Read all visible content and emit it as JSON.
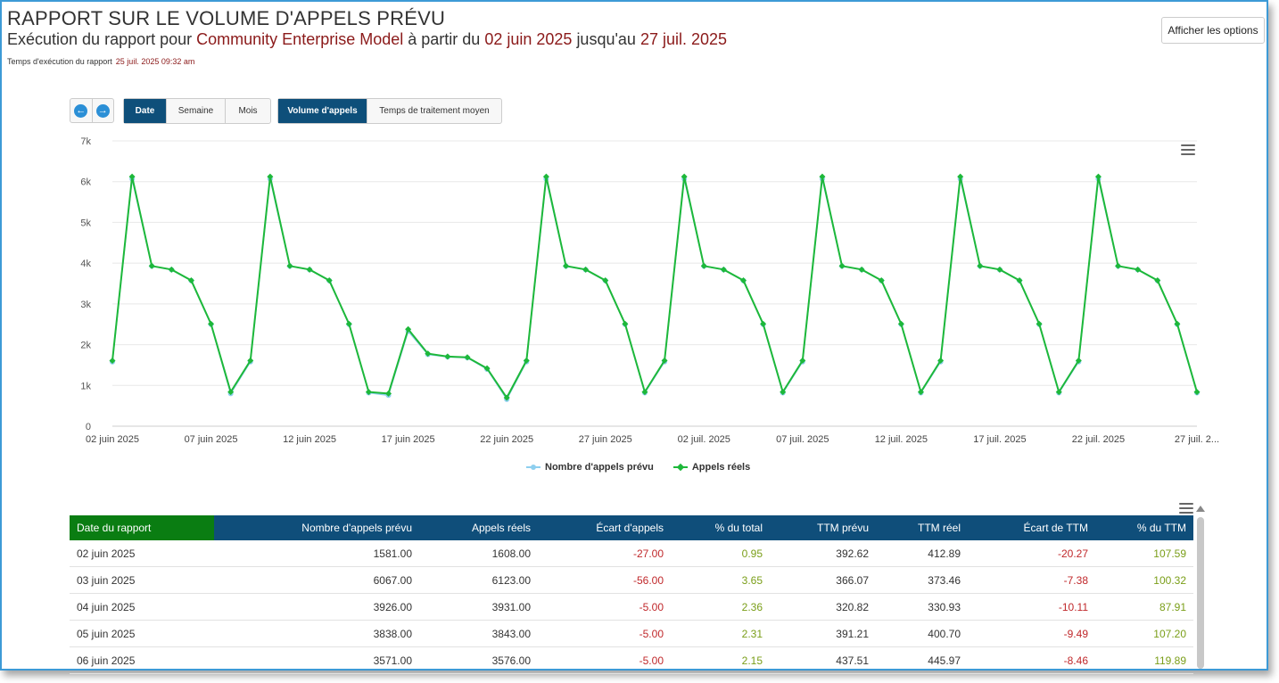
{
  "report": {
    "title": "RAPPORT SUR LE VOLUME D'APPELS PRÉVU",
    "subtitle_prefix": "Exécution du rapport pour",
    "model": "Community Enterprise Model",
    "from_text": "à partir du",
    "start_date": "02 juin 2025",
    "until_text": "jusqu'au",
    "end_date": "27 juil. 2025",
    "runtime_label": "Temps d'exécution du rapport",
    "runtime_value": "25 juil. 2025 09:32 am"
  },
  "toolbar": {
    "options_label": "Afficher les options",
    "prev_icon": "arrow-left-icon",
    "next_icon": "arrow-right-icon",
    "period_tabs": [
      {
        "label": "Date",
        "active": true
      },
      {
        "label": "Semaine",
        "active": false
      },
      {
        "label": "Mois",
        "active": false
      }
    ],
    "metric_tabs": [
      {
        "label": "Volume d'appels",
        "active": true
      },
      {
        "label": "Temps de traitement moyen",
        "active": false
      }
    ]
  },
  "chart_data": {
    "type": "line",
    "title": "",
    "xlabel": "",
    "ylabel": "",
    "ylim": [
      0,
      7000
    ],
    "yticks": [
      "0",
      "1k",
      "2k",
      "3k",
      "4k",
      "5k",
      "6k",
      "7k"
    ],
    "xtick_labels": [
      "02 juin 2025",
      "07 juin 2025",
      "12 juin 2025",
      "17 juin 2025",
      "22 juin 2025",
      "27 juin 2025",
      "02 juil. 2025",
      "07 juil. 2025",
      "12 juil. 2025",
      "17 juil. 2025",
      "22 juil. 2025",
      "27 juil. 2..."
    ],
    "grid": true,
    "legend": "bottom",
    "x": [
      "2025-06-02",
      "2025-06-03",
      "2025-06-04",
      "2025-06-05",
      "2025-06-06",
      "2025-06-07",
      "2025-06-08",
      "2025-06-09",
      "2025-06-10",
      "2025-06-11",
      "2025-06-12",
      "2025-06-13",
      "2025-06-14",
      "2025-06-15",
      "2025-06-16",
      "2025-06-17",
      "2025-06-18",
      "2025-06-19",
      "2025-06-20",
      "2025-06-21",
      "2025-06-22",
      "2025-06-23",
      "2025-06-24",
      "2025-06-25",
      "2025-06-26",
      "2025-06-27",
      "2025-06-28",
      "2025-06-29",
      "2025-06-30",
      "2025-07-01",
      "2025-07-02",
      "2025-07-03",
      "2025-07-04",
      "2025-07-05",
      "2025-07-06",
      "2025-07-07",
      "2025-07-08",
      "2025-07-09",
      "2025-07-10",
      "2025-07-11",
      "2025-07-12",
      "2025-07-13",
      "2025-07-14",
      "2025-07-15",
      "2025-07-16",
      "2025-07-17",
      "2025-07-18",
      "2025-07-19",
      "2025-07-20",
      "2025-07-21",
      "2025-07-22",
      "2025-07-23",
      "2025-07-24",
      "2025-07-25",
      "2025-07-26",
      "2025-07-27"
    ],
    "series": [
      {
        "name": "Nombre d'appels prévu",
        "color": "#8ecfef",
        "values": [
          1581,
          6067,
          3926,
          3838,
          3571,
          2500,
          800,
          1580,
          6067,
          3926,
          3838,
          3571,
          2500,
          820,
          760,
          2330,
          1760,
          1700,
          1680,
          1400,
          660,
          1580,
          6067,
          3926,
          3838,
          3571,
          2500,
          820,
          1580,
          6067,
          3926,
          3838,
          3571,
          2500,
          820,
          1580,
          6067,
          3926,
          3838,
          3571,
          2500,
          820,
          1580,
          6067,
          3926,
          3838,
          3571,
          2500,
          820,
          1580,
          6067,
          3926,
          3838,
          3571,
          2500,
          820
        ]
      },
      {
        "name": "Appels réels",
        "color": "#1db83a",
        "values": [
          1608,
          6123,
          3931,
          3843,
          3576,
          2510,
          840,
          1610,
          6123,
          3931,
          3843,
          3576,
          2510,
          840,
          800,
          2380,
          1780,
          1710,
          1690,
          1420,
          700,
          1610,
          6123,
          3931,
          3843,
          3576,
          2510,
          840,
          1610,
          6123,
          3931,
          3843,
          3576,
          2510,
          840,
          1610,
          6123,
          3931,
          3843,
          3576,
          2510,
          840,
          1610,
          6123,
          3931,
          3843,
          3576,
          2510,
          840,
          1610,
          6123,
          3931,
          3843,
          3576,
          2510,
          840
        ]
      }
    ]
  },
  "table": {
    "headers": [
      "Date du rapport",
      "Nombre d'appels prévu",
      "Appels réels",
      "Écart d'appels",
      "% du total",
      "TTM prévu",
      "TTM réel",
      "Écart de TTM",
      "% du TTM"
    ],
    "rows": [
      [
        "02 juin 2025",
        "1581.00",
        "1608.00",
        "-27.00",
        "0.95",
        "392.62",
        "412.89",
        "-20.27",
        "107.59"
      ],
      [
        "03 juin 2025",
        "6067.00",
        "6123.00",
        "-56.00",
        "3.65",
        "366.07",
        "373.46",
        "-7.38",
        "100.32"
      ],
      [
        "04 juin 2025",
        "3926.00",
        "3931.00",
        "-5.00",
        "2.36",
        "320.82",
        "330.93",
        "-10.11",
        "87.91"
      ],
      [
        "05 juin 2025",
        "3838.00",
        "3843.00",
        "-5.00",
        "2.31",
        "391.21",
        "400.70",
        "-9.49",
        "107.20"
      ],
      [
        "06 juin 2025",
        "3571.00",
        "3576.00",
        "-5.00",
        "2.15",
        "437.51",
        "445.97",
        "-8.46",
        "119.89"
      ]
    ]
  },
  "icons": {
    "chart_menu": "hamburger-menu-icon",
    "table_menu": "hamburger-menu-icon",
    "scroll_up": "caret-up-icon"
  }
}
